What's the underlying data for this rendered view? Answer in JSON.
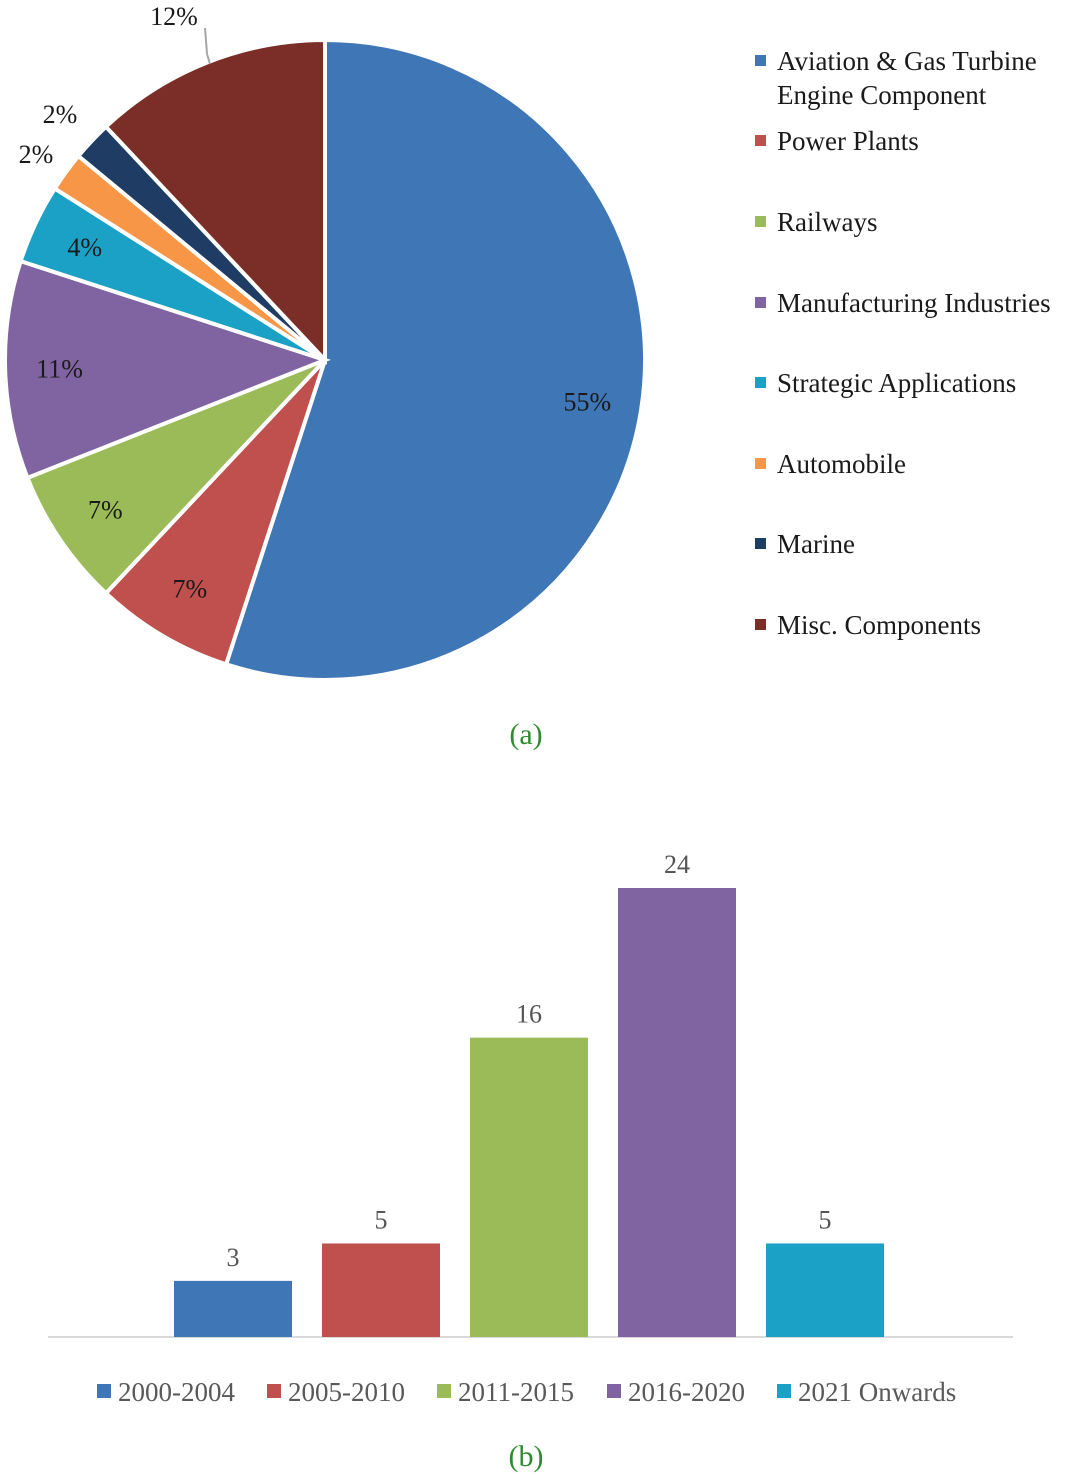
{
  "charts": {
    "chart_a": {
      "type": "pie",
      "caption": "(a)",
      "slices": [
        {
          "name": "Aviation & Gas Turbine Engine Component",
          "legend_lines": [
            "Aviation & Gas Turbine",
            "Engine Component"
          ],
          "value": 55,
          "label": "55%",
          "color": "#3f77b6"
        },
        {
          "name": "Power Plants",
          "legend_lines": [
            "Power Plants"
          ],
          "value": 7,
          "label": "7%",
          "color": "#c0504d"
        },
        {
          "name": "Railways",
          "legend_lines": [
            "Railways"
          ],
          "value": 7,
          "label": "7%",
          "color": "#9bbb59"
        },
        {
          "name": "Manufacturing Industries",
          "legend_lines": [
            "Manufacturing Industries"
          ],
          "value": 11,
          "label": "11%",
          "color": "#8064a2"
        },
        {
          "name": "Strategic Applications",
          "legend_lines": [
            "Strategic Applications"
          ],
          "value": 4,
          "label": "4%",
          "color": "#1ba1c6"
        },
        {
          "name": "Automobile",
          "legend_lines": [
            "Automobile"
          ],
          "value": 2,
          "label": "2%",
          "color": "#f79646"
        },
        {
          "name": "Marine",
          "legend_lines": [
            "Marine"
          ],
          "value": 2,
          "label": "2%",
          "color": "#1f3c64"
        },
        {
          "name": "Misc. Components",
          "legend_lines": [
            "Misc. Components"
          ],
          "value": 12,
          "label": "12%",
          "color": "#7b2e27"
        }
      ]
    },
    "chart_b": {
      "type": "bar",
      "caption": "(b)",
      "categories": [
        "2000-2004",
        "2005-2010",
        "2011-2015",
        "2016-2020",
        "2021 Onwards"
      ],
      "values": [
        3,
        5,
        16,
        24,
        5
      ],
      "colors": [
        "#3f77b6",
        "#c0504d",
        "#9bbb59",
        "#8064a2",
        "#1ba1c6"
      ],
      "ylim": [
        0,
        24
      ]
    }
  },
  "chart_data": [
    {
      "type": "pie",
      "categories": [
        "Aviation & Gas Turbine Engine Component",
        "Power Plants",
        "Railways",
        "Manufacturing Industries",
        "Strategic Applications",
        "Automobile",
        "Marine",
        "Misc. Components"
      ],
      "values": [
        55,
        7,
        7,
        11,
        4,
        2,
        2,
        12
      ],
      "data_labels": [
        "55%",
        "7%",
        "7%",
        "11%",
        "4%",
        "2%",
        "2%",
        "12%"
      ],
      "legend": "right"
    },
    {
      "type": "bar",
      "categories": [
        "2000-2004",
        "2005-2010",
        "2011-2015",
        "2016-2020",
        "2021 Onwards"
      ],
      "values": [
        3,
        5,
        16,
        24,
        5
      ],
      "data_labels": [
        "3",
        "5",
        "16",
        "24",
        "5"
      ],
      "legend": "bottom",
      "grid": false
    }
  ]
}
